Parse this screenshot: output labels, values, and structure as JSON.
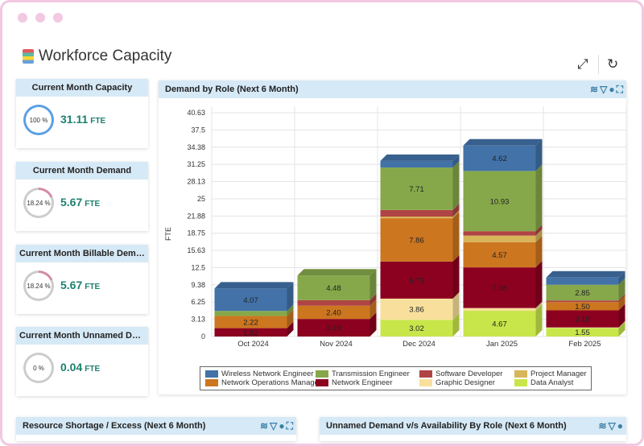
{
  "page": {
    "title": "Workforce Capacity"
  },
  "toolbar": {
    "expand_icon": "expand-icon",
    "refresh_icon": "refresh-icon"
  },
  "cards": [
    {
      "title": "Current Month Capacity",
      "percent": "100 %",
      "percent_value": 100,
      "value": "31.11",
      "unit": "FTE",
      "ring_color": "#5aa0e6"
    },
    {
      "title": "Current Month Demand",
      "percent": "18.24 %",
      "percent_value": 18.24,
      "value": "5.67",
      "unit": "FTE",
      "ring_color": "#d48aa8"
    },
    {
      "title": "Current Month Billable Demand",
      "percent": "18.24 %",
      "percent_value": 18.24,
      "value": "5.67",
      "unit": "FTE",
      "ring_color": "#d48aa8"
    },
    {
      "title": "Current Month Unnamed Dem...",
      "percent": "0 %",
      "percent_value": 0,
      "value": "0.04",
      "unit": "FTE",
      "ring_color": "#d48aa8"
    }
  ],
  "panels": {
    "demand": {
      "title": "Demand by Role (Next 6 Month)"
    },
    "shortage": {
      "title": "Resource Shortage / Excess (Next 6 Month)"
    },
    "unnamed": {
      "title": "Unnamed Demand v/s Availability By Role (Next 6 Month)"
    }
  },
  "chart_data": {
    "type": "bar",
    "stacked": true,
    "ylabel": "FTE",
    "ylim": [
      0,
      40.63
    ],
    "yticks": [
      "0",
      "3.13",
      "6.25",
      "9.38",
      "12.5",
      "15.63",
      "18.75",
      "21.88",
      "25",
      "28.13",
      "31.25",
      "34.38",
      "37.5",
      "40.63"
    ],
    "categories": [
      "Oct 2024",
      "Nov 2024",
      "Dec 2024",
      "Jan 2025",
      "Feb 2025"
    ],
    "legend_position": "bottom",
    "series": [
      {
        "name": "Data Analyst",
        "color": "#c8e64a",
        "values": [
          0,
          0,
          3.02,
          4.67,
          1.55
        ]
      },
      {
        "name": "Graphic Designer",
        "color": "#f8e09c",
        "values": [
          0,
          0,
          3.86,
          0.5,
          0.1
        ]
      },
      {
        "name": "Network Engineer",
        "color": "#8c0020",
        "values": [
          1.52,
          3.19,
          6.73,
          7.38,
          3.1
        ]
      },
      {
        "name": "Network Operations Manager",
        "color": "#cc7620",
        "values": [
          2.22,
          2.4,
          7.86,
          4.57,
          1.5
        ]
      },
      {
        "name": "Project Manager",
        "color": "#d8b45a",
        "values": [
          0,
          0,
          0.3,
          1.2,
          0
        ]
      },
      {
        "name": "Software Developer",
        "color": "#b04444",
        "values": [
          0,
          1.0,
          1.2,
          0.8,
          0.3
        ]
      },
      {
        "name": "Transmission Engineer",
        "color": "#86a84a",
        "values": [
          0.9,
          4.48,
          7.71,
          10.93,
          2.85
        ]
      },
      {
        "name": "Wireless Network Engineer",
        "color": "#4272a8",
        "values": [
          4.07,
          0,
          1.2,
          4.62,
          1.3
        ]
      }
    ],
    "data_labels": [
      [
        "",
        "",
        "1.52",
        "2.22",
        "",
        "",
        "",
        "4.07"
      ],
      [
        "",
        "",
        "3.19",
        "2.40",
        "",
        "",
        "4.48",
        ""
      ],
      [
        "3.02",
        "3.86",
        "6.73",
        "7.86",
        "",
        "",
        "7.71",
        ""
      ],
      [
        "4.67",
        "",
        "7.38",
        "4.57",
        "",
        "",
        "10.93",
        "4.62"
      ],
      [
        "1.55",
        "",
        "3.10",
        "1.50",
        "",
        "",
        "2.85",
        ""
      ]
    ],
    "legend": [
      "Wireless Network Engineer",
      "Transmission Engineer",
      "Software Developer",
      "Project Manager",
      "Network Operations Manager",
      "Network Engineer",
      "Graphic Designer",
      "Data Analyst"
    ]
  }
}
